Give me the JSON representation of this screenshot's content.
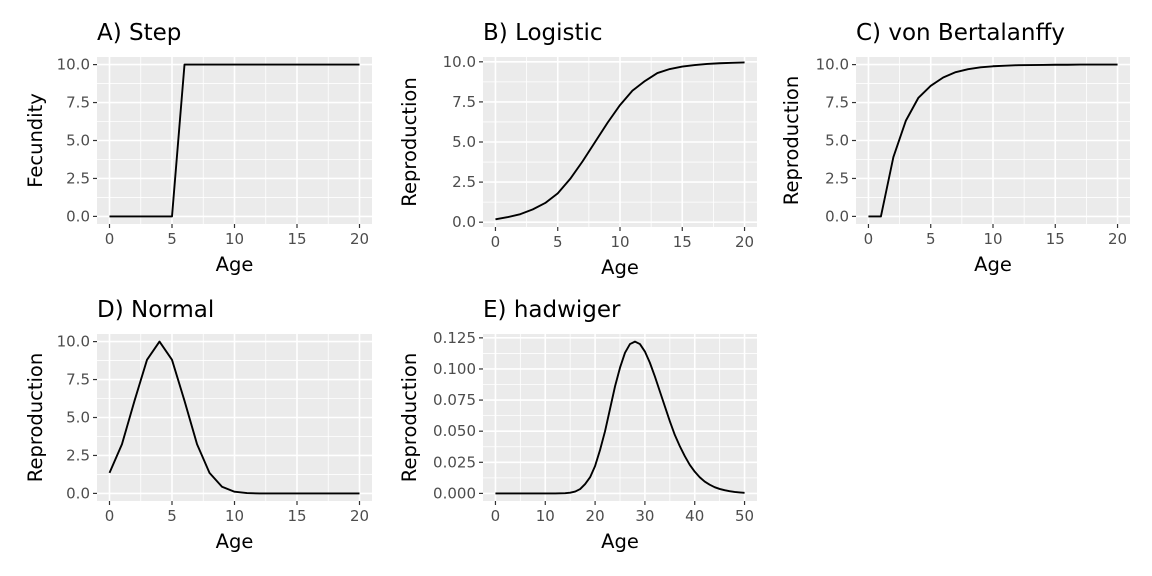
{
  "chart_data": [
    {
      "type": "line",
      "title": "A) Step",
      "xlabel": "Age",
      "ylabel": "Fecundity",
      "xlim": [
        -1,
        21
      ],
      "ylim": [
        -0.5,
        10.5
      ],
      "xticks": [
        0,
        5,
        10,
        15,
        20
      ],
      "xtick_labels": [
        "0",
        "5",
        "10",
        "15",
        "20"
      ],
      "yticks": [
        0,
        2.5,
        5,
        7.5,
        10
      ],
      "ytick_labels": [
        "0.0",
        "2.5",
        "5.0",
        "7.5",
        "10.0"
      ],
      "grid": true,
      "x": [
        0,
        1,
        2,
        3,
        4,
        5,
        6,
        7,
        8,
        9,
        10,
        11,
        12,
        13,
        14,
        15,
        16,
        17,
        18,
        19,
        20
      ],
      "y": [
        0,
        0,
        0,
        0,
        0,
        0,
        10,
        10,
        10,
        10,
        10,
        10,
        10,
        10,
        10,
        10,
        10,
        10,
        10,
        10,
        10
      ]
    },
    {
      "type": "line",
      "title": "B) Logistic",
      "xlabel": "Age",
      "ylabel": "Reproduction",
      "xlim": [
        -1,
        21
      ],
      "ylim": [
        -0.3,
        10.3
      ],
      "xticks": [
        0,
        5,
        10,
        15,
        20
      ],
      "xtick_labels": [
        "0",
        "5",
        "10",
        "15",
        "20"
      ],
      "yticks": [
        0,
        2.5,
        5,
        7.5,
        10
      ],
      "ytick_labels": [
        "0.0",
        "2.5",
        "5.0",
        "7.5",
        "10.0"
      ],
      "grid": true,
      "x": [
        0,
        1,
        2,
        3,
        4,
        5,
        6,
        7,
        8,
        9,
        10,
        11,
        12,
        13,
        14,
        15,
        16,
        17,
        18,
        19,
        20
      ],
      "y": [
        0.18,
        0.32,
        0.5,
        0.8,
        1.2,
        1.8,
        2.7,
        3.8,
        5.0,
        6.2,
        7.3,
        8.2,
        8.8,
        9.3,
        9.55,
        9.7,
        9.8,
        9.87,
        9.91,
        9.94,
        9.96
      ]
    },
    {
      "type": "line",
      "title": "C) von Bertalanffy",
      "xlabel": "Age",
      "ylabel": "Reproduction",
      "xlim": [
        -1,
        21
      ],
      "ylim": [
        -0.5,
        10.5
      ],
      "xticks": [
        0,
        5,
        10,
        15,
        20
      ],
      "xtick_labels": [
        "0",
        "5",
        "10",
        "15",
        "20"
      ],
      "yticks": [
        0,
        2.5,
        5,
        7.5,
        10
      ],
      "ytick_labels": [
        "0.0",
        "2.5",
        "5.0",
        "7.5",
        "10.0"
      ],
      "grid": true,
      "x": [
        0,
        1,
        2,
        3,
        4,
        5,
        6,
        7,
        8,
        9,
        10,
        11,
        12,
        13,
        14,
        15,
        16,
        17,
        18,
        19,
        20
      ],
      "y": [
        0,
        0,
        3.9,
        6.3,
        7.8,
        8.6,
        9.15,
        9.5,
        9.7,
        9.82,
        9.89,
        9.93,
        9.96,
        9.97,
        9.98,
        9.99,
        9.99,
        10.0,
        10.0,
        10.0,
        10.0
      ]
    },
    {
      "type": "line",
      "title": "D) Normal",
      "xlabel": "Age",
      "ylabel": "Reproduction",
      "xlim": [
        -1,
        21
      ],
      "ylim": [
        -0.5,
        10.5
      ],
      "xticks": [
        0,
        5,
        10,
        15,
        20
      ],
      "xtick_labels": [
        "0",
        "5",
        "10",
        "15",
        "20"
      ],
      "yticks": [
        0,
        2.5,
        5,
        7.5,
        10
      ],
      "ytick_labels": [
        "0.0",
        "2.5",
        "5.0",
        "7.5",
        "10.0"
      ],
      "grid": true,
      "x": [
        0,
        1,
        2,
        3,
        4,
        5,
        6,
        7,
        8,
        9,
        10,
        11,
        12,
        13,
        14,
        15,
        16,
        17,
        18,
        19,
        20
      ],
      "y": [
        1.35,
        3.25,
        6.1,
        8.8,
        10.0,
        8.8,
        6.1,
        3.25,
        1.35,
        0.44,
        0.11,
        0.02,
        0,
        0,
        0,
        0,
        0,
        0,
        0,
        0,
        0
      ]
    },
    {
      "type": "line",
      "title": "E) hadwiger",
      "xlabel": "Age",
      "ylabel": "Reproduction",
      "xlim": [
        -2.5,
        52.5
      ],
      "ylim": [
        -0.0061,
        0.1281
      ],
      "xticks": [
        0,
        10,
        20,
        30,
        40,
        50
      ],
      "xtick_labels": [
        "0",
        "10",
        "20",
        "30",
        "40",
        "50"
      ],
      "yticks": [
        0,
        0.025,
        0.05,
        0.075,
        0.1,
        0.125
      ],
      "ytick_labels": [
        "0.000",
        "0.025",
        "0.050",
        "0.075",
        "0.100",
        "0.125"
      ],
      "grid": true,
      "x": [
        0,
        2,
        4,
        6,
        8,
        10,
        12,
        14,
        15,
        16,
        17,
        18,
        19,
        20,
        21,
        22,
        23,
        24,
        25,
        26,
        27,
        28,
        29,
        30,
        31,
        32,
        33,
        34,
        35,
        36,
        37,
        38,
        39,
        40,
        41,
        42,
        43,
        44,
        45,
        46,
        47,
        48,
        49,
        50
      ],
      "y": [
        0,
        0,
        0,
        0,
        0,
        0,
        0,
        0.0002,
        0.0006,
        0.0015,
        0.0035,
        0.0075,
        0.013,
        0.022,
        0.035,
        0.05,
        0.068,
        0.086,
        0.101,
        0.113,
        0.12,
        0.122,
        0.12,
        0.114,
        0.105,
        0.094,
        0.082,
        0.07,
        0.058,
        0.047,
        0.038,
        0.03,
        0.023,
        0.0175,
        0.013,
        0.0095,
        0.007,
        0.005,
        0.0036,
        0.0026,
        0.0018,
        0.0012,
        0.0008,
        0.0005
      ]
    }
  ]
}
